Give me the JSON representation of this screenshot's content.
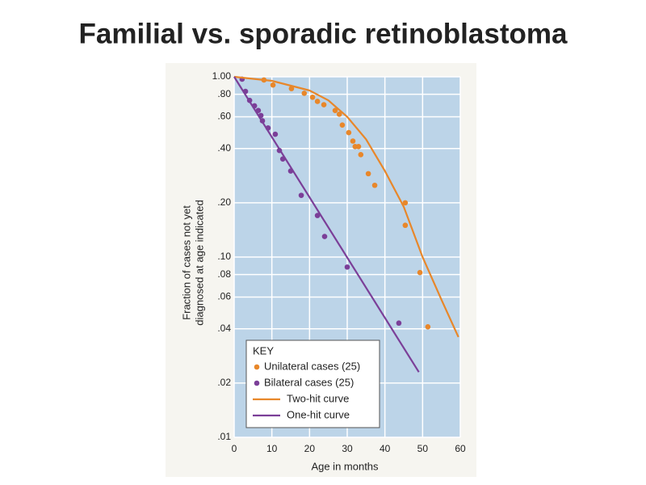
{
  "chart_data": {
    "type": "scatter",
    "title": "Familial vs. sporadic retinoblastoma",
    "xlabel": "Age in months",
    "ylabel": [
      "Fraction of cases not yet",
      "diagnosed at age indicated"
    ],
    "xlim": [
      0,
      60
    ],
    "xticks": [
      0,
      10,
      20,
      30,
      40,
      50,
      60
    ],
    "ylim": [
      0.01,
      1
    ],
    "log_y": true,
    "grid": true,
    "yticks": [
      {
        "value": 1,
        "label": "1.00"
      },
      {
        "value": 0.8,
        "label": ".80"
      },
      {
        "value": 0.6,
        "label": ".60"
      },
      {
        "value": 0.4,
        "label": ".40"
      },
      {
        "value": 0.2,
        "label": ".20"
      },
      {
        "value": 0.1,
        "label": ".10"
      },
      {
        "value": 0.08,
        "label": ".08"
      },
      {
        "value": 0.06,
        "label": ".06"
      },
      {
        "value": 0.04,
        "label": ".04"
      },
      {
        "value": 0.02,
        "label": ".02"
      },
      {
        "value": 0.01,
        "label": ".01"
      }
    ],
    "legend_title": "KEY",
    "legend": "lower left",
    "series": [
      {
        "name": "Unilateral cases (25)",
        "type": "scatter",
        "color": "#e8872a",
        "x": [
          7.9,
          10.3,
          15.2,
          18.6,
          20.8,
          22.1,
          23.8,
          26.8,
          27.9,
          28.7,
          30.4,
          31.5,
          32.1,
          33.0,
          33.6,
          35.6,
          37.3,
          45.4,
          45.4,
          49.3,
          51.4
        ],
        "values": [
          0.96,
          0.9,
          0.86,
          0.81,
          0.77,
          0.73,
          0.7,
          0.65,
          0.62,
          0.54,
          0.49,
          0.44,
          0.41,
          0.41,
          0.37,
          0.29,
          0.25,
          0.2,
          0.15,
          0.082,
          0.041
        ]
      },
      {
        "name": "Bilateral cases (25)",
        "type": "scatter",
        "color": "#7b3f98",
        "x": [
          2.1,
          3,
          4.1,
          5.4,
          6.4,
          7.1,
          7.5,
          9,
          10.9,
          12,
          12.9,
          15,
          17.8,
          22.1,
          24,
          30,
          43.7
        ],
        "values": [
          0.97,
          0.83,
          0.74,
          0.69,
          0.65,
          0.61,
          0.57,
          0.52,
          0.48,
          0.39,
          0.35,
          0.3,
          0.22,
          0.17,
          0.13,
          0.088,
          0.043
        ]
      },
      {
        "name": "Two-hit curve",
        "type": "line",
        "color": "#e8872a",
        "x": [
          0,
          10,
          20,
          25,
          30,
          35,
          40,
          45,
          50,
          55,
          59.5
        ],
        "values": [
          1,
          0.95,
          0.84,
          0.74,
          0.6,
          0.45,
          0.3,
          0.19,
          0.1,
          0.058,
          0.036
        ]
      },
      {
        "name": "One-hit curve",
        "type": "line",
        "color": "#7b3f98",
        "x": [
          0,
          49
        ],
        "values": [
          1,
          0.023
        ]
      }
    ]
  }
}
